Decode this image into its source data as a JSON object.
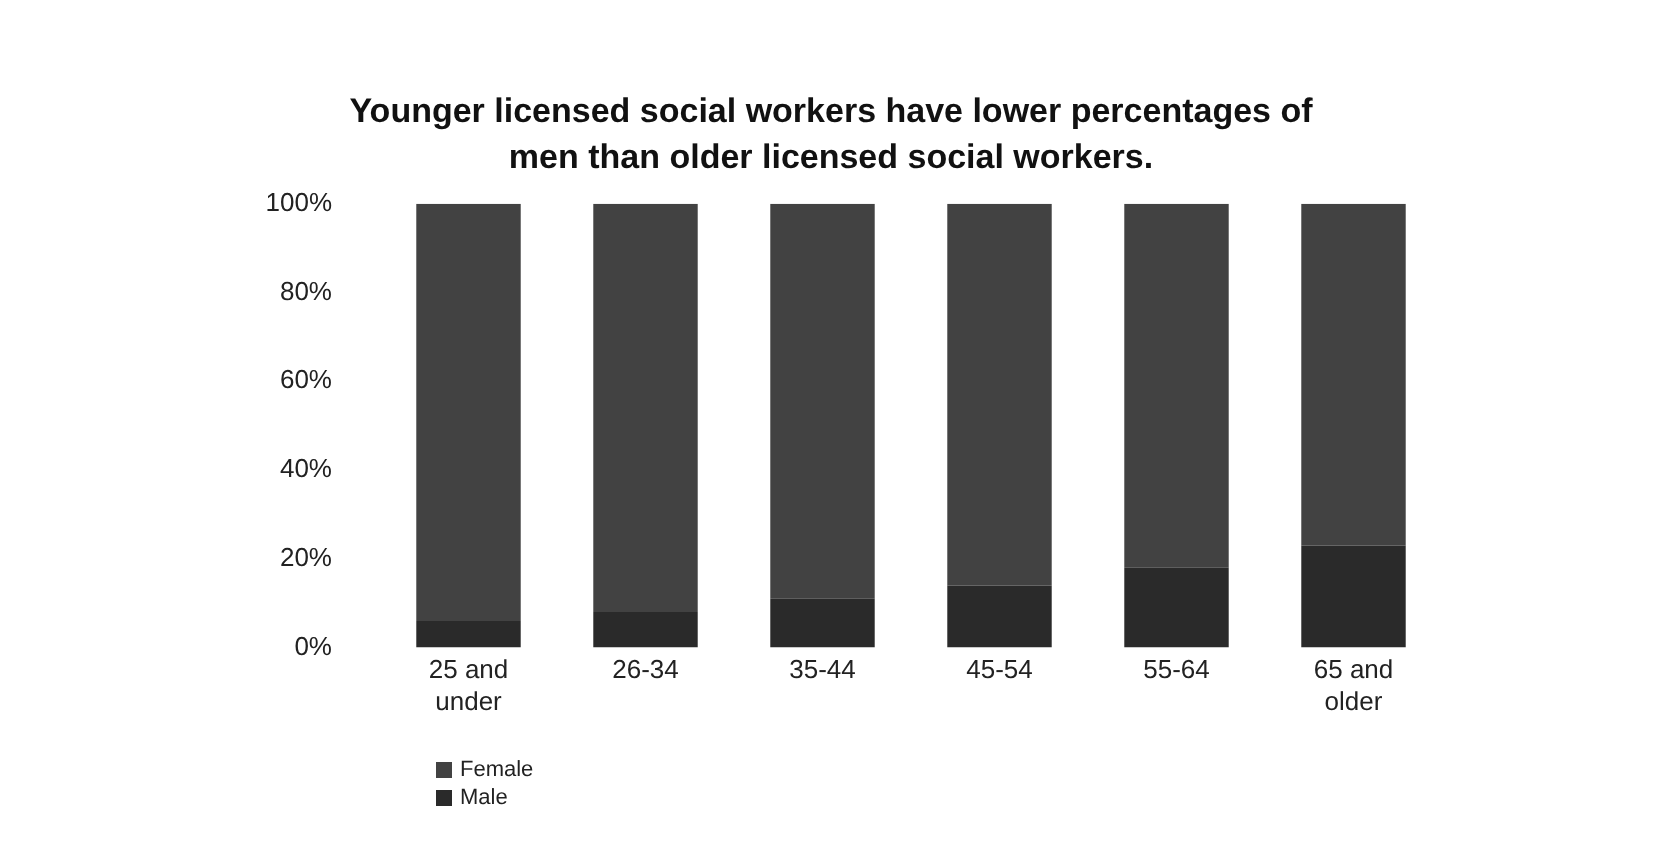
{
  "chart_data": {
    "type": "bar",
    "title": "Younger licensed social workers have lower percentages of men than older licensed social workers.",
    "categories": [
      "25 and under",
      "26-34",
      "35-44",
      "45-54",
      "55-64",
      "65 and older"
    ],
    "stacked": true,
    "series": [
      {
        "name": "Male",
        "color": "#2a2a2a",
        "values": [
          6,
          8,
          11,
          14,
          18,
          23
        ]
      },
      {
        "name": "Female",
        "color": "#424242",
        "values": [
          94,
          92,
          89,
          86,
          82,
          77
        ]
      }
    ],
    "ylim": [
      0,
      100
    ],
    "yticks": [
      {
        "value": 0,
        "label": "0%"
      },
      {
        "value": 20,
        "label": "20%"
      },
      {
        "value": 40,
        "label": "40%"
      },
      {
        "value": 60,
        "label": "60%"
      },
      {
        "value": 80,
        "label": "80%"
      },
      {
        "value": 100,
        "label": "100%"
      }
    ],
    "legend": "bottom left"
  }
}
